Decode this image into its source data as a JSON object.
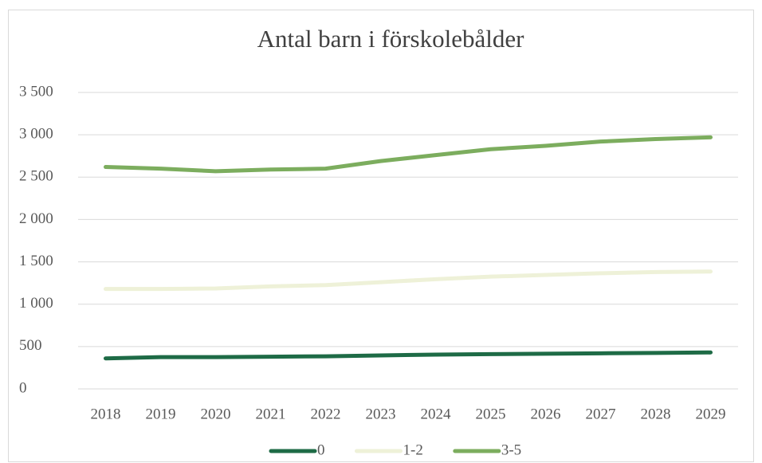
{
  "chart_data": {
    "type": "line",
    "title": "Antal barn i förskolebålder",
    "categories": [
      "2018",
      "2019",
      "2020",
      "2021",
      "2022",
      "2023",
      "2024",
      "2025",
      "2026",
      "2027",
      "2028",
      "2029"
    ],
    "series": [
      {
        "name": "0",
        "color": "#1e6b46",
        "values": [
          360,
          375,
          375,
          380,
          385,
          395,
          405,
          410,
          415,
          420,
          425,
          430
        ]
      },
      {
        "name": "1-2",
        "color": "#eef1d8",
        "values": [
          1180,
          1180,
          1185,
          1210,
          1225,
          1260,
          1295,
          1325,
          1345,
          1365,
          1380,
          1385
        ]
      },
      {
        "name": "3-5",
        "color": "#7cad5e",
        "values": [
          2620,
          2600,
          2570,
          2590,
          2600,
          2690,
          2760,
          2830,
          2870,
          2920,
          2950,
          2970
        ]
      }
    ],
    "ylim": [
      0,
      3500
    ],
    "yticks": [
      0,
      500,
      {
        "value": 1000,
        "label": "1 000"
      },
      {
        "value": 1500,
        "label": "1 500"
      },
      {
        "value": 2000,
        "label": "2 000"
      },
      {
        "value": 2500,
        "label": "2 500"
      },
      {
        "value": 3000,
        "label": "3 000"
      },
      {
        "value": 3500,
        "label": "3 500"
      }
    ],
    "grid": true,
    "legend": "bottom"
  }
}
